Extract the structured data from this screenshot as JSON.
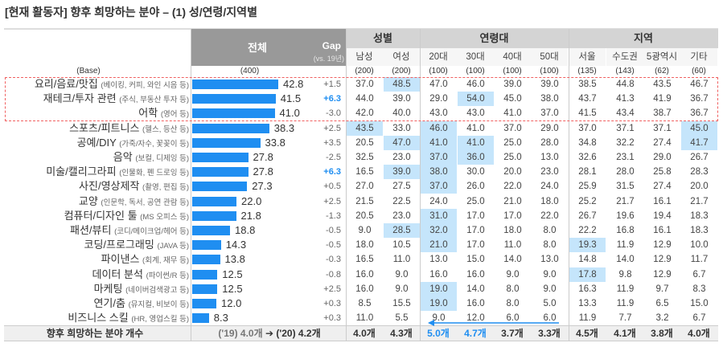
{
  "title": "[현재 활동자] 향후 희망하는 분야 – (1) 성/연령/지역별",
  "chart_data": {
    "type": "table",
    "total_header": "전체",
    "gap_header": "Gap",
    "gap_sub": "(vs. 19년)",
    "base_label": "(Base)",
    "total_base": "(400)",
    "groups": [
      {
        "name": "성별",
        "cols": [
          "남성",
          "여성"
        ]
      },
      {
        "name": "연령대",
        "cols": [
          "20대",
          "30대",
          "40대",
          "50대"
        ]
      },
      {
        "name": "지역",
        "cols": [
          "서울",
          "수도권",
          "5광역시",
          "기타"
        ]
      }
    ],
    "col_bases": [
      "(200)",
      "(200)",
      "(100)",
      "(100)",
      "(100)",
      "(100)",
      "(135)",
      "(143)",
      "(62)",
      "(60)"
    ],
    "rows": [
      {
        "name": "요리/음료/맛집",
        "note": "(베이킹, 커피, 와인 시음 등)",
        "total": 42.8,
        "gap": "+1.5",
        "gap_highlight": false,
        "values": [
          "37.0",
          "48.5",
          "47.0",
          "46.0",
          "39.0",
          "39.0",
          "38.5",
          "44.8",
          "43.5",
          "46.7"
        ],
        "highlight": [
          1
        ]
      },
      {
        "name": "재테크/투자 관련",
        "note": "(주식, 부동산 투자 등)",
        "total": 41.5,
        "gap": "+6.3",
        "gap_highlight": true,
        "values": [
          "44.0",
          "39.0",
          "29.0",
          "54.0",
          "45.0",
          "38.0",
          "43.7",
          "41.3",
          "41.9",
          "36.7"
        ],
        "highlight": [
          3
        ]
      },
      {
        "name": "어학",
        "note": "(영어 등)",
        "total": 41.0,
        "gap": "-3.0",
        "gap_highlight": false,
        "values": [
          "42.0",
          "40.0",
          "43.0",
          "43.0",
          "41.0",
          "37.0",
          "41.5",
          "43.4",
          "38.7",
          "36.7"
        ],
        "highlight": []
      },
      {
        "name": "스포츠/피트니스",
        "note": "(헬스, 등산 등)",
        "total": 38.3,
        "gap": "+2.5",
        "gap_highlight": false,
        "values": [
          "43.5",
          "33.0",
          "46.0",
          "41.0",
          "37.0",
          "29.0",
          "37.0",
          "37.1",
          "37.1",
          "45.0"
        ],
        "highlight": [
          0,
          2,
          9
        ]
      },
      {
        "name": "공예/DIY",
        "note": "(가죽/자수, 꽃꽂이 등)",
        "total": 33.8,
        "gap": "+3.5",
        "gap_highlight": false,
        "values": [
          "20.5",
          "47.0",
          "41.0",
          "41.0",
          "25.0",
          "28.0",
          "34.8",
          "32.2",
          "27.4",
          "41.7"
        ],
        "highlight": [
          1,
          2,
          3,
          9
        ]
      },
      {
        "name": "음악",
        "note": "(보컬, 디제잉 등)",
        "total": 27.8,
        "gap": "-2.5",
        "gap_highlight": false,
        "values": [
          "32.5",
          "23.0",
          "37.0",
          "36.0",
          "25.0",
          "13.0",
          "32.6",
          "23.1",
          "29.0",
          "26.7"
        ],
        "highlight": [
          2,
          3
        ]
      },
      {
        "name": "미술/캘리그라피",
        "note": "(인물화, 펜 드로잉 등)",
        "total": 27.8,
        "gap": "+6.3",
        "gap_highlight": true,
        "values": [
          "16.5",
          "39.0",
          "38.0",
          "30.0",
          "20.0",
          "23.0",
          "28.1",
          "28.0",
          "25.8",
          "28.3"
        ],
        "highlight": [
          1,
          2
        ]
      },
      {
        "name": "사진/영상제작",
        "note": "(촬영, 편집 등)",
        "total": 27.3,
        "gap": "+0.5",
        "gap_highlight": false,
        "values": [
          "27.0",
          "27.5",
          "37.0",
          "26.0",
          "22.0",
          "24.0",
          "25.9",
          "31.5",
          "27.4",
          "20.0"
        ],
        "highlight": [
          2
        ]
      },
      {
        "name": "교양",
        "note": "(인문학, 독서, 공연 관람 등)",
        "total": 22.0,
        "gap": "+2.5",
        "gap_highlight": false,
        "values": [
          "21.5",
          "22.5",
          "24.0",
          "25.0",
          "21.0",
          "18.0",
          "25.2",
          "21.7",
          "16.1",
          "21.7"
        ],
        "highlight": []
      },
      {
        "name": "컴퓨터/디자인 툴",
        "note": "(MS 오피스 등)",
        "total": 21.8,
        "gap": "-1.3",
        "gap_highlight": false,
        "values": [
          "20.5",
          "23.0",
          "31.0",
          "17.0",
          "17.0",
          "22.0",
          "26.7",
          "19.6",
          "19.4",
          "18.3"
        ],
        "highlight": [
          2
        ]
      },
      {
        "name": "패션/뷰티",
        "note": "(코디/메이크업/헤어 등)",
        "total": 18.8,
        "gap": "-0.5",
        "gap_highlight": false,
        "values": [
          "9.0",
          "28.5",
          "32.0",
          "17.0",
          "18.0",
          "8.0",
          "22.2",
          "16.8",
          "16.1",
          "18.3"
        ],
        "highlight": [
          1,
          2
        ]
      },
      {
        "name": "코딩/프로그래밍",
        "note": "(JAVA 등)",
        "total": 14.3,
        "gap": "-0.5",
        "gap_highlight": false,
        "values": [
          "18.0",
          "10.5",
          "21.0",
          "17.0",
          "11.0",
          "8.0",
          "19.3",
          "11.9",
          "12.9",
          "10.0"
        ],
        "highlight": [
          2,
          6
        ]
      },
      {
        "name": "파이낸스",
        "note": "(회계, 재무 등)",
        "total": 13.8,
        "gap": "-0.3",
        "gap_highlight": false,
        "values": [
          "16.5",
          "11.0",
          "13.0",
          "15.0",
          "14.0",
          "13.0",
          "14.8",
          "14.0",
          "12.9",
          "11.7"
        ],
        "highlight": []
      },
      {
        "name": "데이터 분석",
        "note": "(파이썬/R 등)",
        "total": 12.5,
        "gap": "-0.8",
        "gap_highlight": false,
        "values": [
          "16.0",
          "9.0",
          "16.0",
          "16.0",
          "9.0",
          "9.0",
          "17.8",
          "9.8",
          "12.9",
          "6.7"
        ],
        "highlight": [
          6
        ]
      },
      {
        "name": "마케팅",
        "note": "(네이버검색광고 등)",
        "total": 12.5,
        "gap": "+2.5",
        "gap_highlight": false,
        "values": [
          "16.0",
          "9.0",
          "19.0",
          "14.0",
          "8.0",
          "9.0",
          "16.3",
          "11.9",
          "9.7",
          "8.3"
        ],
        "highlight": [
          2
        ]
      },
      {
        "name": "연기/춤",
        "note": "(뮤지컬, 비보이 등)",
        "total": 12.0,
        "gap": "+0.3",
        "gap_highlight": false,
        "values": [
          "8.5",
          "15.5",
          "19.0",
          "16.0",
          "8.0",
          "5.0",
          "13.3",
          "11.9",
          "6.5",
          "15.0"
        ],
        "highlight": [
          2
        ]
      },
      {
        "name": "비즈니스 스킬",
        "note": "(HR, 영업스킬 등)",
        "total": 8.3,
        "gap": "+0.3",
        "gap_highlight": false,
        "values": [
          "11.0",
          "5.5",
          "9.0",
          "12.0",
          "6.0",
          "6.0",
          "11.9",
          "7.7",
          "3.2",
          "6.7"
        ],
        "highlight": []
      }
    ],
    "footer": {
      "label": "향후 희망하는 분야 개수",
      "total_prev": "('19) 4.0개",
      "total_now": "('20) 4.2개",
      "values": [
        "4.0개",
        "4.3개",
        "5.0개",
        "4.7개",
        "3.7개",
        "3.3개",
        "4.5개",
        "4.1개",
        "3.8개",
        "4.0개"
      ],
      "blue": [
        2,
        3
      ]
    },
    "colors": {
      "bar": "#1f8ef1",
      "highlight": "#c5e5fb",
      "accent": "#1f8ef1",
      "box": "#f06060"
    }
  }
}
